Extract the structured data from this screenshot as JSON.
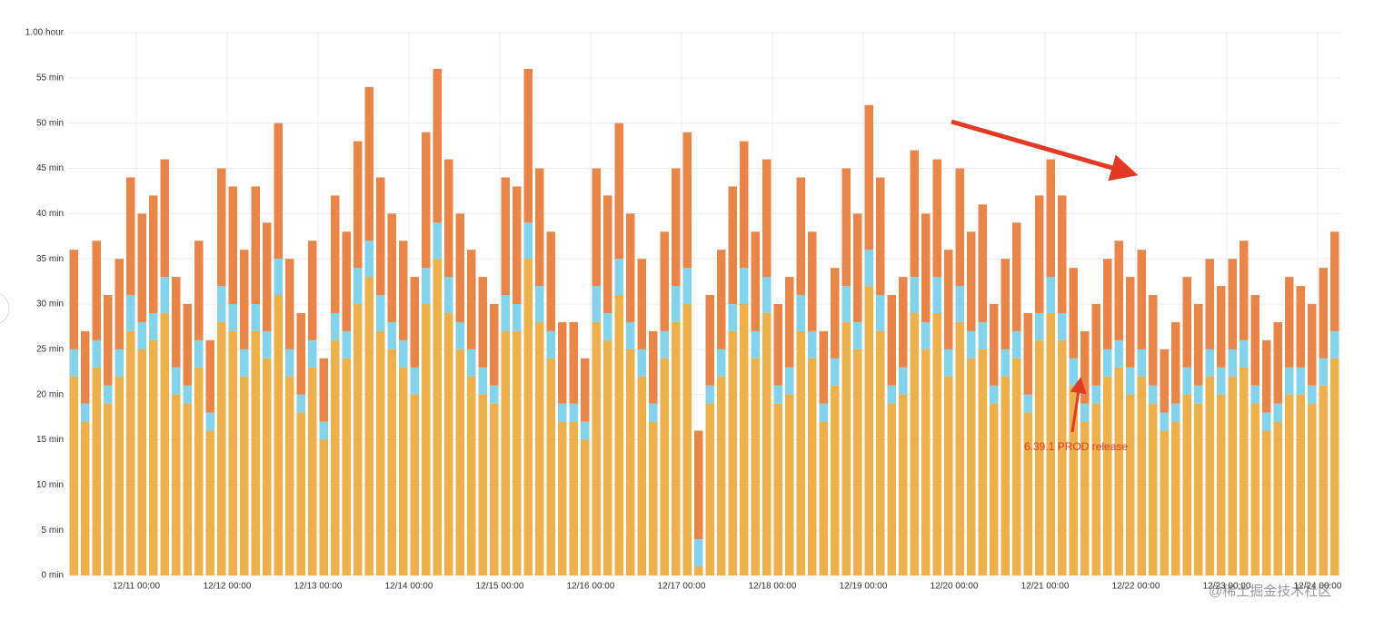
{
  "chart_data": {
    "type": "bar",
    "stacked": true,
    "grid": true,
    "annotation": "6.39.1 PROD release",
    "categories": [
      null,
      null,
      null,
      null,
      null,
      null,
      "12/11 00:00",
      null,
      null,
      null,
      null,
      null,
      null,
      null,
      "12/12 00:00",
      null,
      null,
      null,
      null,
      null,
      null,
      null,
      "12/13 00:00",
      null,
      null,
      null,
      null,
      null,
      null,
      null,
      "12/14 00:00",
      null,
      null,
      null,
      null,
      null,
      null,
      null,
      "12/15 00:00",
      null,
      null,
      null,
      null,
      null,
      null,
      null,
      "12/16 00:00",
      null,
      null,
      null,
      null,
      null,
      null,
      null,
      "12/17 00:00",
      null,
      null,
      null,
      null,
      null,
      null,
      null,
      "12/18 00:00",
      null,
      null,
      null,
      null,
      null,
      null,
      null,
      "12/19 00:00",
      null,
      null,
      null,
      null,
      null,
      null,
      null,
      "12/20 00:00",
      null,
      null,
      null,
      null,
      null,
      null,
      null,
      "12/21 00:00",
      null,
      null,
      null,
      null,
      null,
      null,
      null,
      "12/22 00:00",
      null,
      null,
      null,
      null,
      null,
      null,
      null,
      "12/23 00:00",
      null,
      null,
      null,
      null,
      null,
      null,
      null,
      "12/24 00:00",
      null
    ],
    "series": [
      {
        "color": "#ecb04c",
        "values": [
          22,
          17,
          23,
          19,
          22,
          27,
          25,
          26,
          29,
          20,
          19,
          23,
          16,
          28,
          27,
          22,
          27,
          24,
          31,
          22,
          18,
          23,
          15,
          26,
          24,
          30,
          33,
          27,
          25,
          23,
          20,
          30,
          35,
          29,
          25,
          22,
          20,
          19,
          27,
          27,
          35,
          28,
          24,
          17,
          17,
          15,
          28,
          26,
          31,
          25,
          22,
          17,
          24,
          28,
          30,
          1,
          19,
          22,
          27,
          30,
          24,
          29,
          19,
          20,
          27,
          24,
          17,
          21,
          28,
          25,
          32,
          27,
          19,
          20,
          29,
          25,
          29,
          22,
          28,
          24,
          25,
          19,
          22,
          24,
          18,
          26,
          29,
          26,
          21,
          17,
          19,
          22,
          23,
          20,
          22,
          19,
          16,
          17,
          20,
          19,
          22,
          20,
          22,
          23,
          19,
          16,
          17,
          20,
          20,
          19,
          21,
          24
        ]
      },
      {
        "color": "#84d3ea",
        "values": [
          3,
          2,
          3,
          2,
          3,
          4,
          3,
          3,
          4,
          3,
          2,
          3,
          2,
          4,
          3,
          3,
          3,
          3,
          4,
          3,
          2,
          3,
          2,
          3,
          3,
          4,
          4,
          4,
          3,
          3,
          3,
          4,
          4,
          4,
          3,
          3,
          3,
          2,
          4,
          3,
          4,
          4,
          3,
          2,
          2,
          2,
          4,
          3,
          4,
          3,
          3,
          2,
          3,
          4,
          4,
          3,
          2,
          3,
          3,
          4,
          3,
          4,
          2,
          3,
          4,
          3,
          2,
          3,
          4,
          3,
          4,
          4,
          2,
          3,
          4,
          3,
          4,
          3,
          4,
          3,
          3,
          2,
          3,
          3,
          2,
          3,
          4,
          3,
          3,
          2,
          2,
          3,
          3,
          3,
          3,
          2,
          2,
          2,
          3,
          2,
          3,
          3,
          3,
          3,
          2,
          2,
          2,
          3,
          3,
          2,
          3,
          3
        ]
      },
      {
        "color": "#e8864a",
        "values": [
          11,
          8,
          11,
          10,
          10,
          13,
          12,
          13,
          13,
          10,
          9,
          11,
          8,
          13,
          13,
          11,
          13,
          12,
          15,
          10,
          9,
          11,
          7,
          13,
          11,
          14,
          17,
          13,
          12,
          11,
          10,
          15,
          17,
          13,
          12,
          11,
          10,
          9,
          13,
          13,
          17,
          13,
          11,
          9,
          9,
          7,
          13,
          13,
          15,
          12,
          10,
          8,
          11,
          13,
          15,
          12,
          10,
          11,
          13,
          14,
          11,
          13,
          9,
          10,
          13,
          11,
          8,
          10,
          13,
          12,
          16,
          13,
          10,
          10,
          14,
          12,
          13,
          11,
          13,
          11,
          13,
          9,
          10,
          12,
          9,
          13,
          13,
          13,
          10,
          8,
          9,
          10,
          11,
          10,
          11,
          10,
          7,
          9,
          10,
          9,
          10,
          9,
          10,
          11,
          10,
          8,
          9,
          10,
          9,
          9,
          10,
          11
        ]
      }
    ],
    "ylim": [
      0,
      60
    ],
    "yticks": [
      {
        "value": 0,
        "label": "0 min"
      },
      {
        "value": 5,
        "label": "5 min"
      },
      {
        "value": 10,
        "label": "10 min"
      },
      {
        "value": 15,
        "label": "15 min"
      },
      {
        "value": 20,
        "label": "20 min"
      },
      {
        "value": 25,
        "label": "25 min"
      },
      {
        "value": 30,
        "label": "30 min"
      },
      {
        "value": 35,
        "label": "35 min"
      },
      {
        "value": 40,
        "label": "40 min"
      },
      {
        "value": 45,
        "label": "45 min"
      },
      {
        "value": 50,
        "label": "50 min"
      },
      {
        "value": 55,
        "label": "55 min"
      },
      {
        "value": 60,
        "label": "1.00 hour"
      }
    ]
  },
  "watermark": "@稀土掘金技术社区"
}
